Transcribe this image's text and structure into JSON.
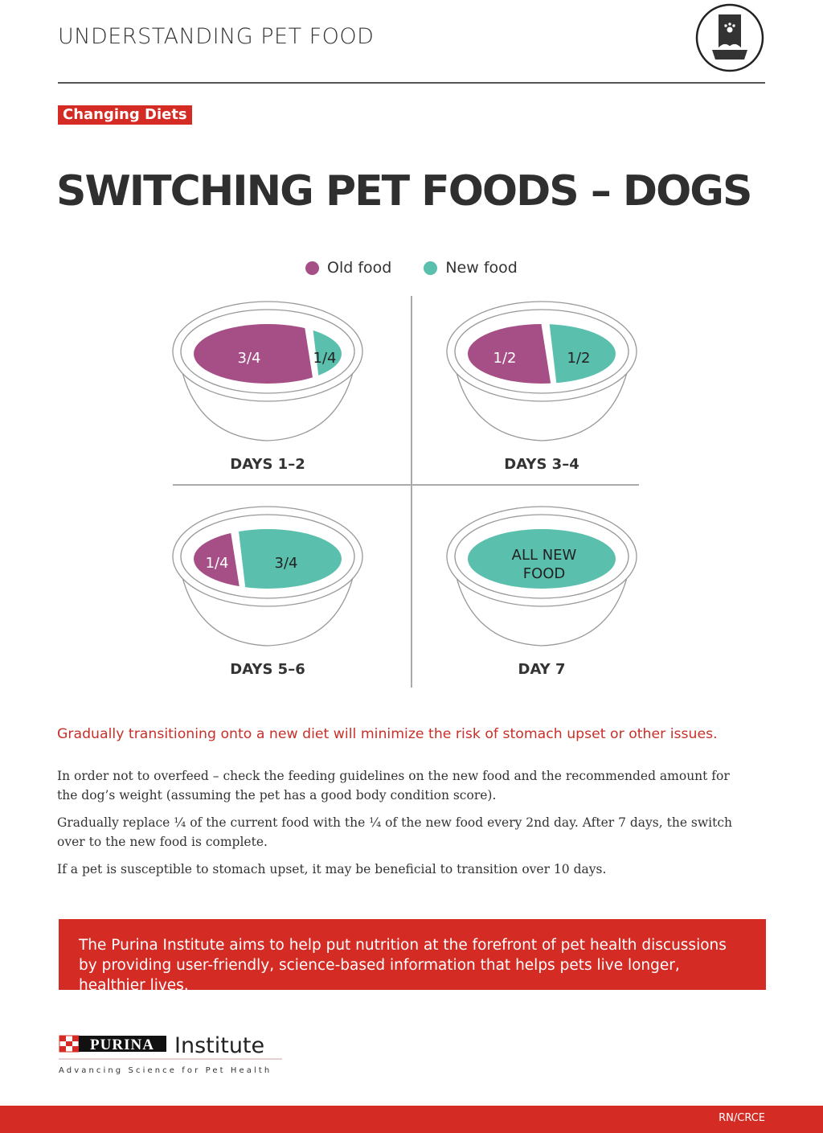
{
  "header": {
    "title": "UNDERSTANDING PET FOOD",
    "icon": "pet-food-bag-icon"
  },
  "tag": "Changing Diets",
  "title": "SWITCHING PET FOODS – DOGS",
  "colors": {
    "old": "#a64f86",
    "new": "#5bbfae",
    "accent": "#d42b25"
  },
  "legend": [
    {
      "label": "Old food"
    },
    {
      "label": "New food"
    }
  ],
  "bowls": [
    {
      "label": "DAYS 1–2",
      "old_fraction": 0.75,
      "old_text": "3/4",
      "new_text": "1/4"
    },
    {
      "label": "DAYS 3–4",
      "old_fraction": 0.5,
      "old_text": "1/2",
      "new_text": "1/2"
    },
    {
      "label": "DAYS 5–6",
      "old_fraction": 0.25,
      "old_text": "1/4",
      "new_text": "3/4"
    },
    {
      "label": "DAY 7",
      "old_fraction": 0,
      "old_text": "",
      "new_text": "ALL NEW FOOD",
      "new_text_lines": [
        "ALL NEW",
        "FOOD"
      ]
    }
  ],
  "lead": "Gradually transitioning onto a new diet will minimize the risk of stomach upset or other issues.",
  "paragraphs": [
    "In order not to overfeed – check the feeding guidelines on the new food and the recommended amount for the dog’s weight (assuming the pet has a good body condition score).",
    "Gradually replace ¼ of the current food with the ¼ of the new food every 2nd day. After 7 days, the switch over to the new food is complete.",
    "If a pet is susceptible to stomach upset, it may be beneficial to transition over 10 days."
  ],
  "banner": "The Purina Institute aims to help put nutrition at the forefront of pet health discussions by providing user-friendly, science-based information that helps pets live longer, healthier lives.",
  "logo": {
    "brand": "PURINA",
    "name": "Institute",
    "tagline": "Advancing Science for Pet Health"
  },
  "footer_code": "RN/CRCE"
}
